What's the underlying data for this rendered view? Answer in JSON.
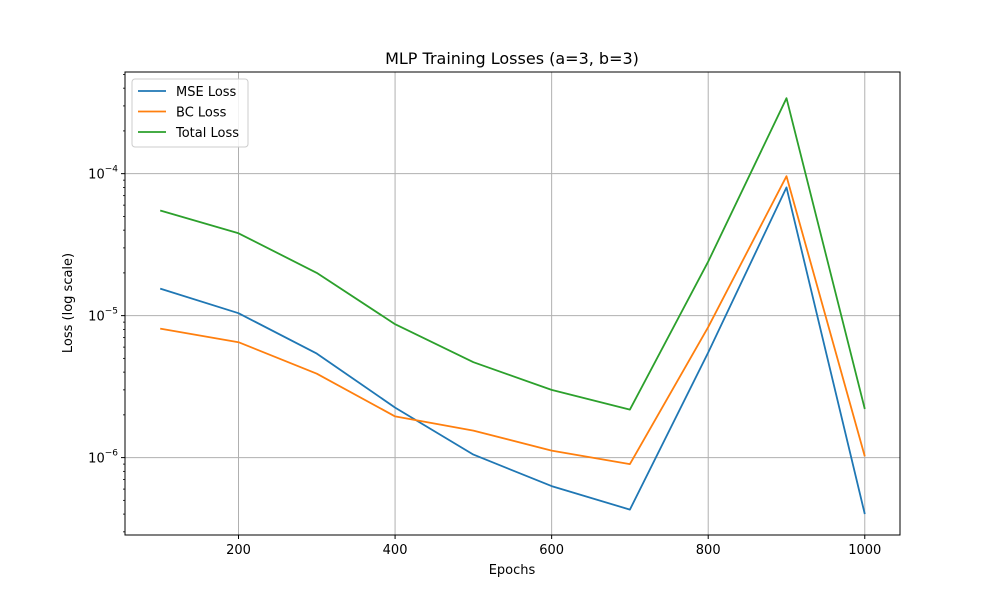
{
  "chart_data": {
    "type": "line",
    "title": "MLP Training Losses (a=3, b=3)",
    "xlabel": "Epochs",
    "ylabel": "Loss (log scale)",
    "yscale": "log",
    "x": [
      100,
      200,
      300,
      400,
      500,
      600,
      700,
      800,
      900,
      1000
    ],
    "xlim": [
      55,
      1045
    ],
    "ylim": [
      2.85e-07,
      0.00052
    ],
    "xticks": [
      200,
      400,
      600,
      800,
      1000
    ],
    "yticks": [
      {
        "value": 1e-06,
        "base": "10",
        "exp": "−6"
      },
      {
        "value": 1e-05,
        "base": "10",
        "exp": "−5"
      },
      {
        "value": 0.0001,
        "base": "10",
        "exp": "−4"
      }
    ],
    "grid": true,
    "legend_position": "top-left",
    "series": [
      {
        "name": "MSE Loss",
        "color": "#1f77b4",
        "values": [
          1.55e-05,
          1.04e-05,
          5.4e-06,
          2.25e-06,
          1.05e-06,
          6.3e-07,
          4.3e-07,
          5.5e-06,
          8e-05,
          4e-07
        ]
      },
      {
        "name": "BC Loss",
        "color": "#ff7f0e",
        "values": [
          8.1e-06,
          6.5e-06,
          3.9e-06,
          1.95e-06,
          1.55e-06,
          1.12e-06,
          9e-07,
          8.3e-06,
          9.6e-05,
          1.02e-06
        ]
      },
      {
        "name": "Total Loss",
        "color": "#2ca02c",
        "values": [
          5.5e-05,
          3.8e-05,
          2e-05,
          8.7e-06,
          4.7e-06,
          3e-06,
          2.18e-06,
          2.4e-05,
          0.00034,
          2.2e-06
        ]
      }
    ]
  }
}
